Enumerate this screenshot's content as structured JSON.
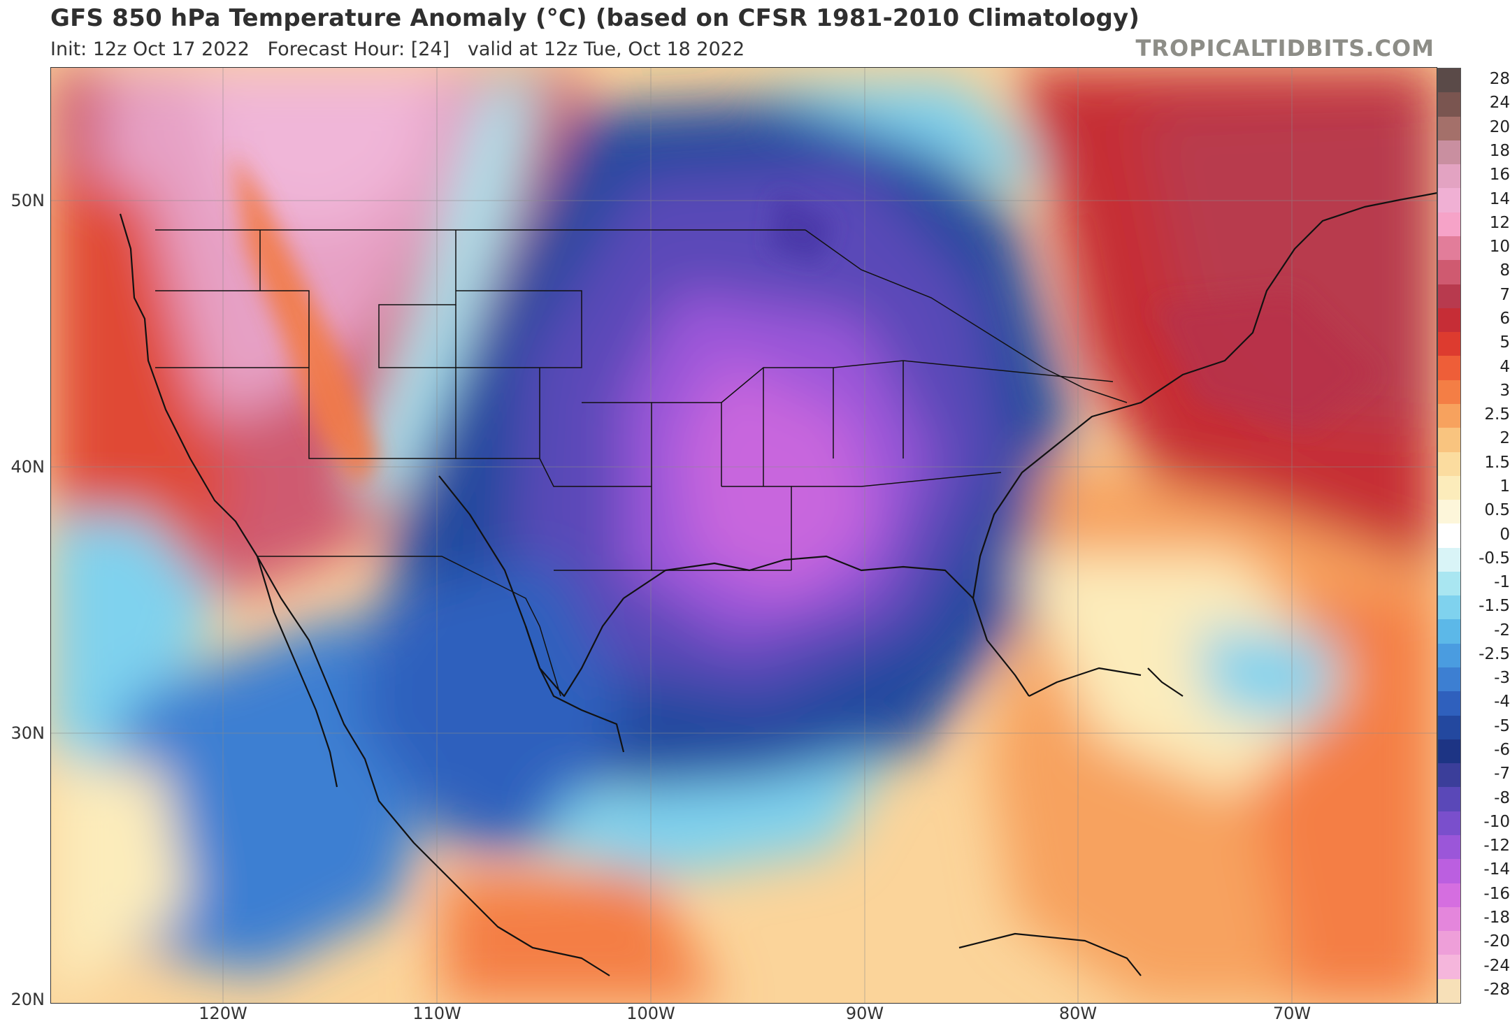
{
  "header": {
    "title": "GFS 850 hPa Temperature Anomaly (°C) (based on CFSR 1981-2010 Climatology)",
    "subtitle": "Init: 12z Oct 17 2022   Forecast Hour: [24]   valid at 12z Tue, Oct 18 2022",
    "brand": "TROPICALTIDBITS.COM"
  },
  "map": {
    "lat_labels": [
      "50N",
      "40N",
      "30N",
      "20N"
    ],
    "lon_labels": [
      "120W",
      "110W",
      "100W",
      "90W",
      "80W",
      "70W"
    ]
  },
  "legend": {
    "labels": [
      "28",
      "24",
      "20",
      "18",
      "16",
      "14",
      "12",
      "10",
      "8",
      "7",
      "6",
      "5",
      "4",
      "3",
      "2.5",
      "2",
      "1.5",
      "1",
      "0.5",
      "0",
      "-0.5",
      "-1",
      "-1.5",
      "-2",
      "-2.5",
      "-3",
      "-4",
      "-5",
      "-6",
      "-7",
      "-8",
      "-10",
      "-12",
      "-14",
      "-16",
      "-18",
      "-20",
      "-24",
      "-28"
    ],
    "colors": [
      "#5a4a48",
      "#7a5550",
      "#a4706a",
      "#c98fa0",
      "#e3a3c2",
      "#f0b0d4",
      "#f6a3c8",
      "#e27d9a",
      "#cf5a70",
      "#b83a4e",
      "#c62d36",
      "#dd3b2f",
      "#ee5e38",
      "#f47e45",
      "#f7a25e",
      "#f9c47f",
      "#fbdc9f",
      "#fcecbb",
      "#fdf6da",
      "#ffffff",
      "#d9f4f7",
      "#a9e6f1",
      "#7fd2ee",
      "#5cb8e8",
      "#4a9ce0",
      "#3d7fd2",
      "#2f60bd",
      "#23489f",
      "#1d3484",
      "#3b3e9a",
      "#5a48b8",
      "#7a4fcc",
      "#9b56d9",
      "#bb5fe0",
      "#d56ee0",
      "#e486dc",
      "#ee9fd9",
      "#f5b6dc",
      "#f7e0b8"
    ]
  }
}
